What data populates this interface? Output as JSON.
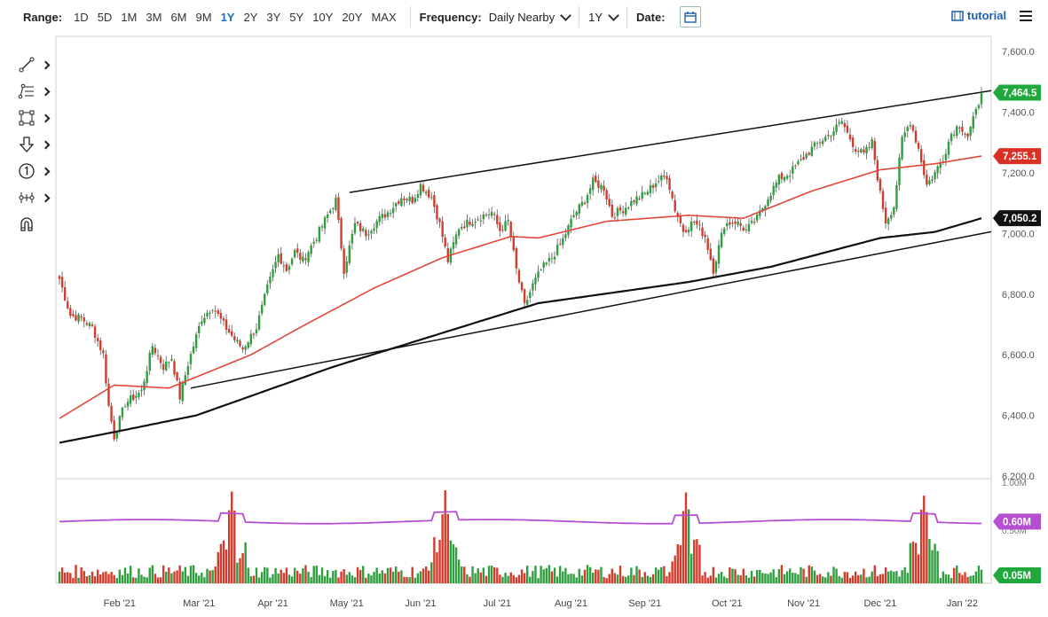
{
  "toolbar": {
    "range_label": "Range:",
    "ranges": [
      "1D",
      "5D",
      "1M",
      "3M",
      "6M",
      "9M",
      "1Y",
      "2Y",
      "3Y",
      "5Y",
      "10Y",
      "20Y",
      "MAX"
    ],
    "active_range": "1Y",
    "frequency_label": "Frequency:",
    "frequency_value": "Daily Nearby",
    "period_value": "1Y",
    "date_label": "Date:",
    "tutorial_label": "tutorial"
  },
  "tools": [
    "trendline-tool-icon",
    "fib-levels-tool-icon",
    "rectangle-tool-icon",
    "arrow-tool-icon",
    "number-annotation-tool-icon",
    "measure-tool-icon",
    "magnet-icon"
  ],
  "colors": {
    "up": "#2e9e3e",
    "down": "#d33b2c",
    "ma_short": "#e2483a",
    "ma_long": "#111111",
    "volume_avg": "#b44fd0",
    "last_price_badge": "#20a83c",
    "ma_short_badge": "#d92f25",
    "ma_long_badge": "#111111",
    "volume_avg_badge": "#b44fd0",
    "volume_badge": "#20a83c"
  },
  "chart_data": {
    "type": "candlestick",
    "ylim": [
      6200,
      7650
    ],
    "y_ticks": [
      "6,200.0",
      "6,400.0",
      "6,600.0",
      "6,800.0",
      "7,000.0",
      "7,200.0",
      "7,400.0",
      "7,600.0"
    ],
    "y_tick_values": [
      6200,
      6400,
      6600,
      6800,
      7000,
      7200,
      7400,
      7600
    ],
    "x_ticks": [
      "Feb '21",
      "Mar '21",
      "Apr '21",
      "May '21",
      "Jun '21",
      "Jul '21",
      "Aug '21",
      "Sep '21",
      "Oct '21",
      "Nov '21",
      "Dec '21",
      "Jan '22"
    ],
    "last_price_label": "7,464.5",
    "ma_short_label": "7,255.1",
    "ma_long_label": "7,050.2",
    "close_anchors": [
      [
        0,
        6850
      ],
      [
        4,
        6730
      ],
      [
        8,
        6720
      ],
      [
        12,
        6690
      ],
      [
        16,
        6600
      ],
      [
        18,
        6430
      ],
      [
        20,
        6330
      ],
      [
        24,
        6440
      ],
      [
        27,
        6460
      ],
      [
        30,
        6480
      ],
      [
        34,
        6630
      ],
      [
        38,
        6560
      ],
      [
        41,
        6590
      ],
      [
        44,
        6460
      ],
      [
        47,
        6570
      ],
      [
        52,
        6720
      ],
      [
        56,
        6760
      ],
      [
        60,
        6700
      ],
      [
        64,
        6650
      ],
      [
        67,
        6620
      ],
      [
        72,
        6690
      ],
      [
        76,
        6820
      ],
      [
        80,
        6930
      ],
      [
        83,
        6880
      ],
      [
        86,
        6940
      ],
      [
        89,
        6910
      ],
      [
        94,
        6990
      ],
      [
        98,
        7060
      ],
      [
        101,
        7110
      ],
      [
        104,
        6880
      ],
      [
        108,
        7030
      ],
      [
        112,
        7000
      ],
      [
        116,
        7040
      ],
      [
        120,
        7070
      ],
      [
        125,
        7120
      ],
      [
        129,
        7110
      ],
      [
        132,
        7160
      ],
      [
        136,
        7120
      ],
      [
        139,
        7030
      ],
      [
        142,
        6910
      ],
      [
        146,
        7020
      ],
      [
        150,
        7040
      ],
      [
        155,
        7060
      ],
      [
        158,
        7070
      ],
      [
        161,
        7010
      ],
      [
        164,
        7040
      ],
      [
        167,
        6880
      ],
      [
        170,
        6760
      ],
      [
        173,
        6830
      ],
      [
        176,
        6880
      ],
      [
        180,
        6920
      ],
      [
        184,
        6980
      ],
      [
        188,
        7060
      ],
      [
        192,
        7110
      ],
      [
        195,
        7170
      ],
      [
        199,
        7150
      ],
      [
        202,
        7060
      ],
      [
        206,
        7080
      ],
      [
        210,
        7110
      ],
      [
        214,
        7130
      ],
      [
        218,
        7170
      ],
      [
        222,
        7190
      ],
      [
        225,
        7080
      ],
      [
        228,
        7010
      ],
      [
        232,
        7040
      ],
      [
        236,
        6990
      ],
      [
        239,
        6880
      ],
      [
        243,
        7030
      ],
      [
        247,
        7040
      ],
      [
        251,
        7010
      ],
      [
        255,
        7050
      ],
      [
        259,
        7120
      ],
      [
        263,
        7180
      ],
      [
        267,
        7200
      ],
      [
        271,
        7240
      ],
      [
        275,
        7280
      ],
      [
        279,
        7310
      ],
      [
        282,
        7330
      ],
      [
        286,
        7370
      ],
      [
        288,
        7330
      ],
      [
        291,
        7280
      ],
      [
        294,
        7260
      ],
      [
        297,
        7300
      ],
      [
        300,
        7130
      ],
      [
        302,
        7040
      ],
      [
        305,
        7090
      ],
      [
        308,
        7310
      ],
      [
        311,
        7370
      ],
      [
        314,
        7280
      ],
      [
        317,
        7160
      ],
      [
        320,
        7200
      ],
      [
        323,
        7250
      ],
      [
        326,
        7330
      ],
      [
        329,
        7360
      ],
      [
        332,
        7320
      ],
      [
        335,
        7400
      ],
      [
        337,
        7465
      ]
    ],
    "ma_short": [
      [
        0,
        6390
      ],
      [
        20,
        6500
      ],
      [
        40,
        6490
      ],
      [
        70,
        6600
      ],
      [
        90,
        6700
      ],
      [
        115,
        6820
      ],
      [
        140,
        6920
      ],
      [
        165,
        6990
      ],
      [
        175,
        6985
      ],
      [
        200,
        7040
      ],
      [
        230,
        7060
      ],
      [
        250,
        7050
      ],
      [
        275,
        7140
      ],
      [
        300,
        7210
      ],
      [
        320,
        7230
      ],
      [
        337,
        7255
      ]
    ],
    "ma_long": [
      [
        0,
        6310
      ],
      [
        20,
        6345
      ],
      [
        50,
        6400
      ],
      [
        100,
        6560
      ],
      [
        150,
        6700
      ],
      [
        175,
        6770
      ],
      [
        230,
        6840
      ],
      [
        260,
        6890
      ],
      [
        300,
        6985
      ],
      [
        320,
        7005
      ],
      [
        337,
        7050
      ]
    ],
    "trendlines": [
      {
        "from": [
          106,
          7135
        ],
        "to": [
          337,
          7465
        ]
      },
      {
        "from": [
          48,
          6490
        ],
        "to": [
          337,
          7000
        ]
      }
    ],
    "volume_axis_labels": [
      "1.00M",
      "0.50M"
    ],
    "volume_avg_label": "0.60M",
    "volume_last_label": "0.05M",
    "volume_spikes": [
      62,
      63,
      64,
      140,
      141,
      142,
      228,
      229,
      230,
      315,
      316,
      317
    ],
    "volume_avg_level": 0.6
  }
}
